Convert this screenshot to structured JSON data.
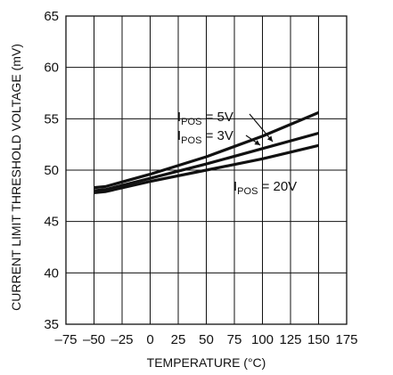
{
  "chart_data": {
    "type": "line",
    "title": "",
    "xlabel": "TEMPERATURE (°C)",
    "ylabel": "CURRENT LIMIT THRESHOLD VOLTAGE (mV)",
    "xlim": [
      -75,
      175
    ],
    "ylim": [
      35,
      65
    ],
    "xticks": [
      -75,
      -50,
      -25,
      0,
      25,
      50,
      75,
      100,
      125,
      150,
      175
    ],
    "xtick_labels": [
      "–75",
      "–50",
      "–25",
      "0",
      "25",
      "50",
      "75",
      "100",
      "125",
      "150",
      "175"
    ],
    "yticks": [
      35,
      40,
      45,
      50,
      55,
      60,
      65
    ],
    "ytick_labels": [
      "35",
      "40",
      "45",
      "50",
      "55",
      "60",
      "65"
    ],
    "grid": true,
    "legend": "none",
    "series": [
      {
        "name": "IPOS = 5V",
        "x": [
          -50,
          -40,
          0,
          50,
          100,
          150
        ],
        "y": [
          48.3,
          48.4,
          49.6,
          51.3,
          53.3,
          55.6
        ]
      },
      {
        "name": "IPOS = 3V",
        "x": [
          -50,
          -40,
          0,
          50,
          100,
          150
        ],
        "y": [
          48.0,
          48.1,
          49.2,
          50.6,
          52.1,
          53.6
        ]
      },
      {
        "name": "IPOS = 20V",
        "x": [
          -50,
          -40,
          0,
          50,
          100,
          150
        ],
        "y": [
          47.8,
          47.9,
          48.9,
          50.0,
          51.1,
          52.4
        ]
      }
    ],
    "annotations": [
      {
        "text": "IPOS = 5V",
        "main": "I",
        "sub": "POS",
        "rest": " = 5V"
      },
      {
        "text": "IPOS = 3V",
        "main": "I",
        "sub": "POS",
        "rest": " = 3V"
      },
      {
        "text": "IPOS = 20V",
        "main": "I",
        "sub": "POS",
        "rest": " = 20V"
      }
    ],
    "line_color": "#111111",
    "grid_color": "#111111"
  }
}
